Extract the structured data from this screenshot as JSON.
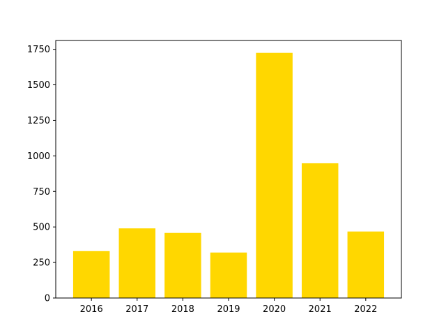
{
  "chart_data": {
    "type": "bar",
    "categories": [
      "2016",
      "2017",
      "2018",
      "2019",
      "2020",
      "2021",
      "2022"
    ],
    "values": [
      330,
      490,
      458,
      320,
      1725,
      948,
      468
    ],
    "ylim": [
      0,
      1812
    ],
    "yticks": [
      0,
      250,
      500,
      750,
      1000,
      1250,
      1500,
      1750
    ],
    "grid": false,
    "colors": {
      "bar": "#FFD700",
      "axis": "#000000",
      "background": "#ffffff"
    }
  }
}
